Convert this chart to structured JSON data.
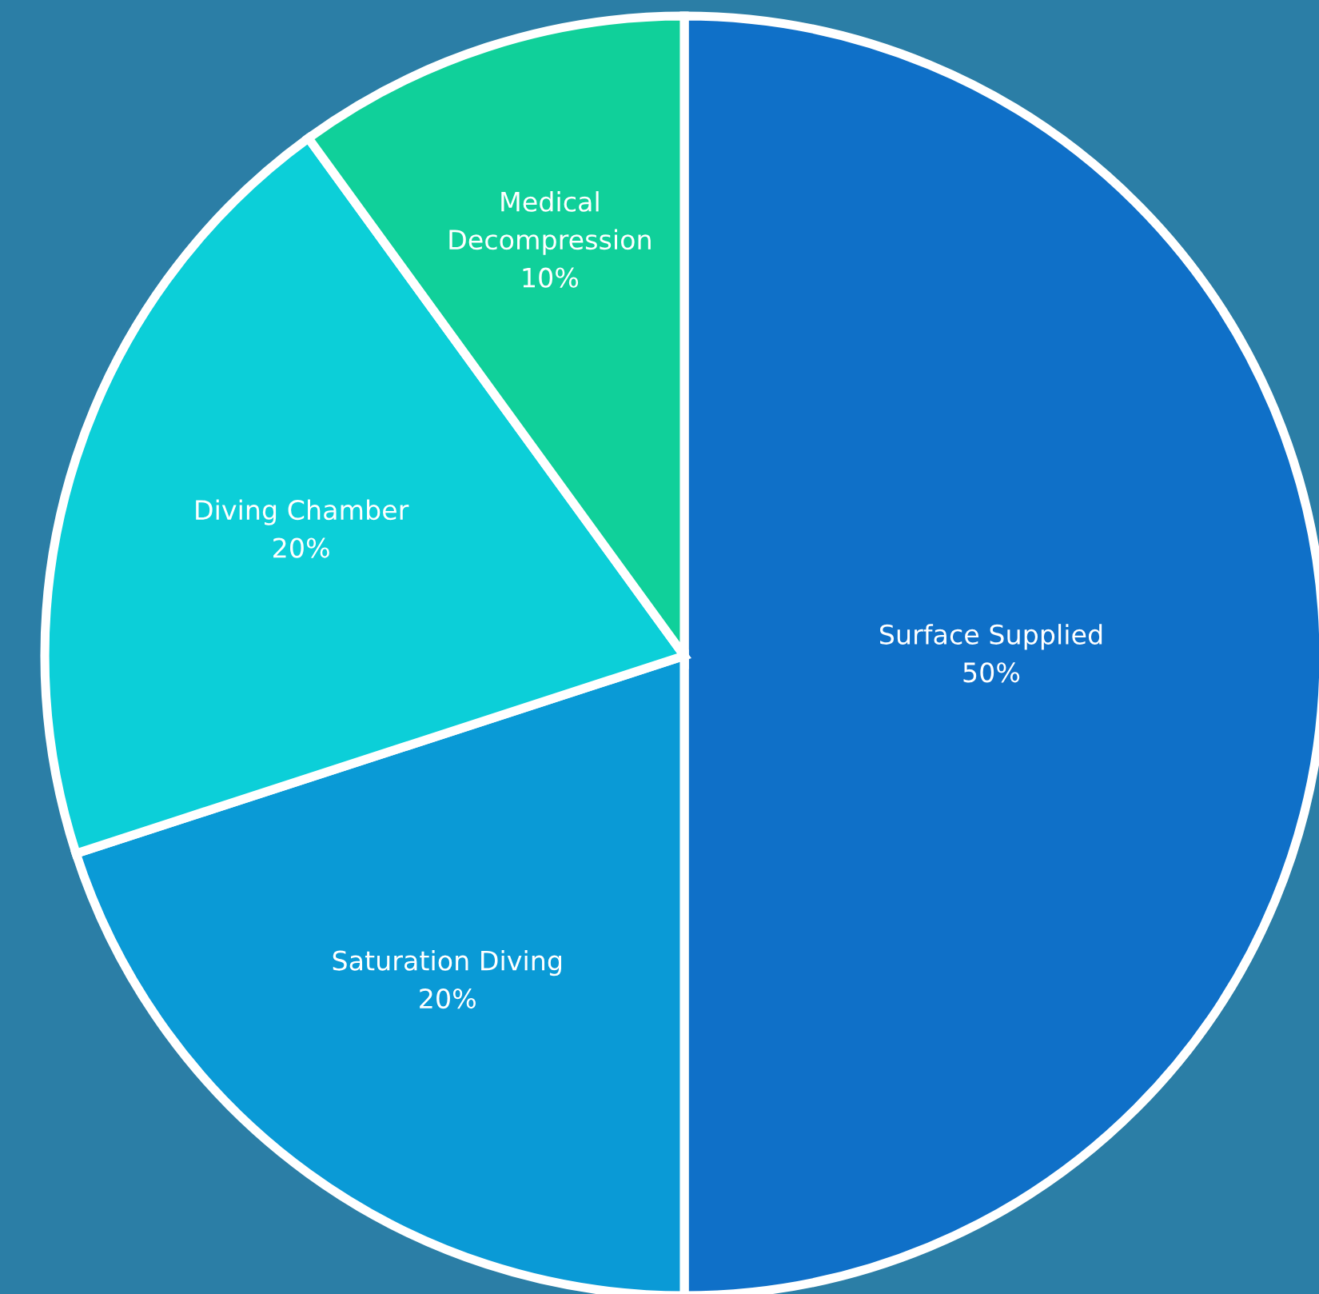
{
  "chart_data": {
    "type": "pie",
    "categories": [
      "Surface Supplied",
      "Saturation Diving",
      "Diving Chamber",
      "Medical Decompression"
    ],
    "values": [
      50,
      20,
      20,
      10
    ],
    "colors": [
      "#0f70c8",
      "#0a9ad6",
      "#0ccfd8",
      "#10d09a"
    ],
    "value_labels": [
      "50%",
      "20%",
      "20%",
      "10%"
    ]
  }
}
